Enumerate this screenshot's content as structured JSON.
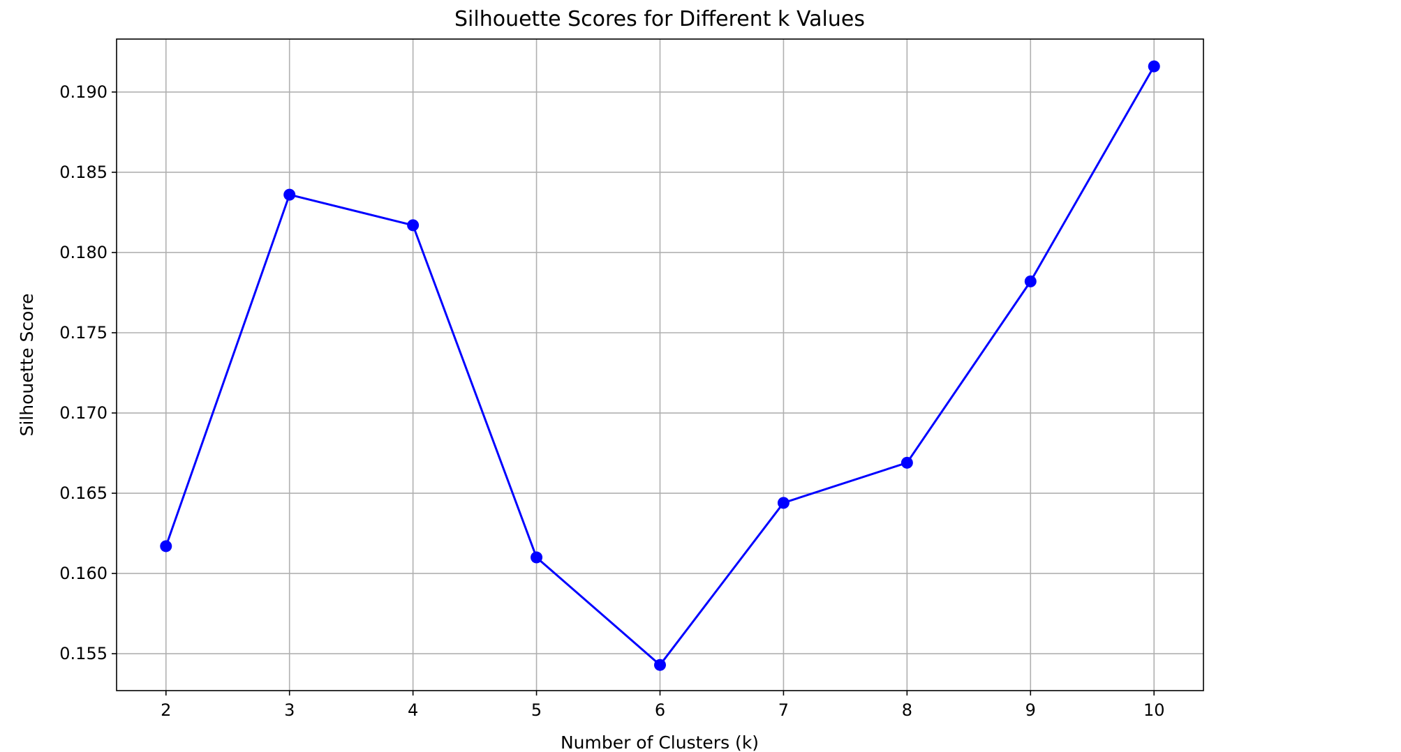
{
  "chart_data": {
    "type": "line",
    "title": "Silhouette Scores for Different k Values",
    "xlabel": "Number of Clusters (k)",
    "ylabel": "Silhouette Score",
    "x": [
      2,
      3,
      4,
      5,
      6,
      7,
      8,
      9,
      10
    ],
    "series": [
      {
        "values": [
          0.1617,
          0.1836,
          0.1817,
          0.161,
          0.1543,
          0.1644,
          0.1669,
          0.1782,
          0.1916
        ],
        "color": "#0000ff",
        "marker": "circle"
      }
    ],
    "xticks": [
      "2",
      "3",
      "4",
      "5",
      "6",
      "7",
      "8",
      "9",
      "10"
    ],
    "yticks": [
      "0.155",
      "0.160",
      "0.165",
      "0.170",
      "0.175",
      "0.180",
      "0.185",
      "0.190"
    ],
    "ytick_values": [
      0.155,
      0.16,
      0.165,
      0.17,
      0.175,
      0.18,
      0.185,
      0.19
    ],
    "xlim": [
      1.6,
      10.4
    ],
    "ylim": [
      0.1527,
      0.1933
    ],
    "grid": true,
    "grid_color": "#b0b0b0"
  }
}
